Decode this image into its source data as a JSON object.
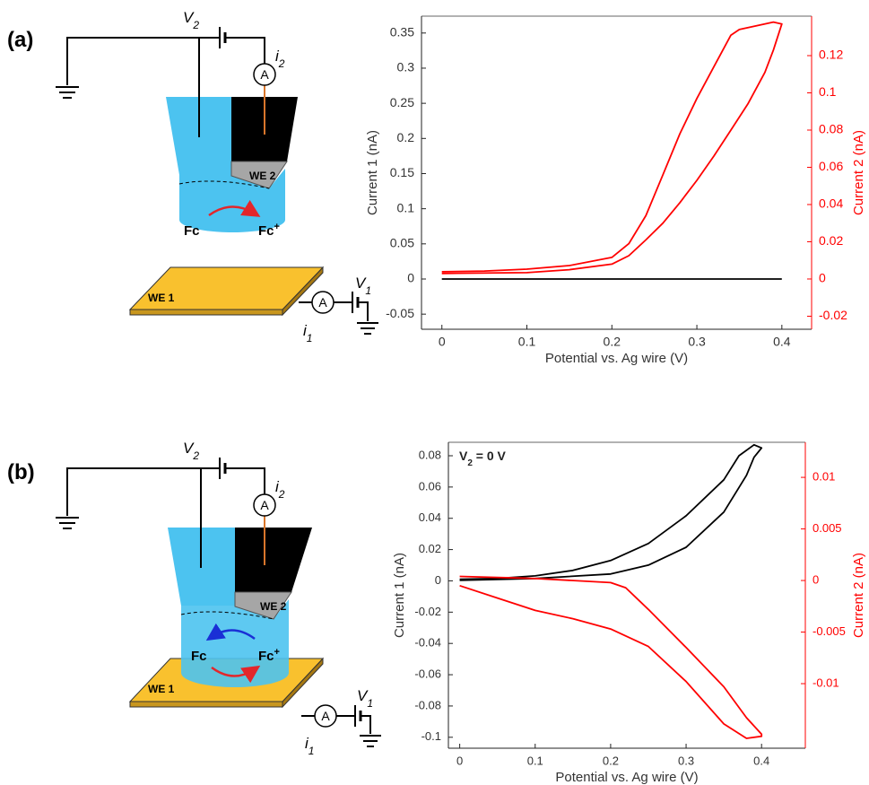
{
  "schematics": [
    {
      "panel_label": "(a)",
      "v2": {
        "main": "V",
        "sub": "2"
      },
      "i2": {
        "main": "i",
        "sub": "2"
      },
      "ammeter_top": "A",
      "we2": "WE 2",
      "fc": "Fc",
      "fc_plus": {
        "main": "Fc",
        "sup": "+"
      },
      "we1": "WE 1",
      "ammeter_bottom": "A",
      "v1": {
        "main": "V",
        "sub": "1"
      },
      "i1": {
        "main": "i",
        "sub": "1"
      }
    },
    {
      "panel_label": "(b)",
      "v2": {
        "main": "V",
        "sub": "2"
      },
      "i2": {
        "main": "i",
        "sub": "2"
      },
      "ammeter_top": "A",
      "we2": "WE 2",
      "fc": "Fc",
      "fc_plus": {
        "main": "Fc",
        "sup": "+"
      },
      "we1": "WE 1",
      "ammeter_bottom": "A",
      "v1": {
        "main": "V",
        "sub": "1"
      },
      "i1": {
        "main": "i",
        "sub": "1"
      }
    }
  ],
  "chart_data": [
    {
      "type": "line",
      "x_label": "Potential vs. Ag wire (V)",
      "y_label": "Current 1 (nA)",
      "y2_label": "Current 2 (nA)",
      "y2_color": "#ff0000",
      "xlim": [
        -0.024,
        0.435
      ],
      "xticks": [
        0,
        0.1,
        0.2,
        0.3,
        0.4
      ],
      "ylim": [
        -0.0715,
        0.374
      ],
      "yticks": [
        -0.05,
        0,
        0.05,
        0.1,
        0.15,
        0.2,
        0.25,
        0.3,
        0.35
      ],
      "y2lim": [
        -0.027,
        0.1412
      ],
      "y2ticks": [
        -0.02,
        0,
        0.02,
        0.04,
        0.06,
        0.08,
        0.1,
        0.12
      ],
      "series": [
        {
          "color": "#000000",
          "axis": "y",
          "x": [
            0,
            0.1,
            0.2,
            0.3,
            0.4
          ],
          "values": [
            0,
            0,
            0,
            0,
            0
          ]
        },
        {
          "color": "#ff0000",
          "axis": "y2",
          "x": [
            0,
            0.1,
            0.15,
            0.2,
            0.22,
            0.24,
            0.26,
            0.28,
            0.3,
            0.32,
            0.34,
            0.36,
            0.38,
            0.39,
            0.4,
            0.39,
            0.37,
            0.35,
            0.34,
            0.32,
            0.3,
            0.28,
            0.26,
            0.24,
            0.22,
            0.2,
            0.15,
            0.1,
            0.05,
            0
          ],
          "values": [
            0.003,
            0.0034,
            0.005,
            0.008,
            0.0125,
            0.021,
            0.03,
            0.041,
            0.053,
            0.066,
            0.08,
            0.094,
            0.111,
            0.123,
            0.137,
            0.138,
            0.136,
            0.134,
            0.131,
            0.114,
            0.097,
            0.078,
            0.056,
            0.034,
            0.019,
            0.0116,
            0.0072,
            0.0053,
            0.0043,
            0.0039
          ]
        }
      ]
    },
    {
      "type": "line",
      "x_label": "Potential vs. Ag wire (V)",
      "y_label": "Current 1 (nA)",
      "y2_label": "Current 2 (nA)",
      "y2_color": "#ff0000",
      "annotation": {
        "main": "V",
        "sub": "2",
        "rest": " = 0 V"
      },
      "xlim": [
        -0.015,
        0.458
      ],
      "xticks": [
        0,
        0.1,
        0.2,
        0.3,
        0.4
      ],
      "ylim": [
        -0.107,
        0.0886
      ],
      "yticks": [
        -0.1,
        -0.08,
        -0.06,
        -0.04,
        -0.02,
        0,
        0.02,
        0.04,
        0.06,
        0.08
      ],
      "y2lim": [
        -0.01626,
        0.0134
      ],
      "y2ticks": [
        -0.01,
        -0.005,
        0,
        0.005,
        0.01
      ],
      "series": [
        {
          "color": "#000000",
          "axis": "y",
          "x": [
            0,
            0.1,
            0.2,
            0.25,
            0.3,
            0.35,
            0.38,
            0.39,
            0.4,
            0.39,
            0.37,
            0.35,
            0.3,
            0.25,
            0.2,
            0.15,
            0.1,
            0.05,
            0
          ],
          "values": [
            0.0003,
            0.0015,
            0.0044,
            0.0101,
            0.0215,
            0.044,
            0.0675,
            0.079,
            0.085,
            0.087,
            0.08,
            0.0646,
            0.0416,
            0.0239,
            0.013,
            0.0067,
            0.0032,
            0.0015,
            0.001
          ]
        },
        {
          "color": "#ff0000",
          "axis": "y2",
          "x": [
            0,
            0.1,
            0.2,
            0.22,
            0.25,
            0.3,
            0.35,
            0.38,
            0.4,
            0.4,
            0.38,
            0.35,
            0.3,
            0.25,
            0.2,
            0.15,
            0.1,
            0.05,
            0
          ],
          "values": [
            0.0004,
            0.0002,
            -0.0002,
            -0.0007,
            -0.0028,
            -0.0065,
            -0.0103,
            -0.0133,
            -0.0149,
            -0.0151,
            -0.0153,
            -0.0139,
            -0.0098,
            -0.0064,
            -0.0047,
            -0.0037,
            -0.0029,
            -0.0017,
            -0.0005
          ]
        }
      ]
    }
  ]
}
